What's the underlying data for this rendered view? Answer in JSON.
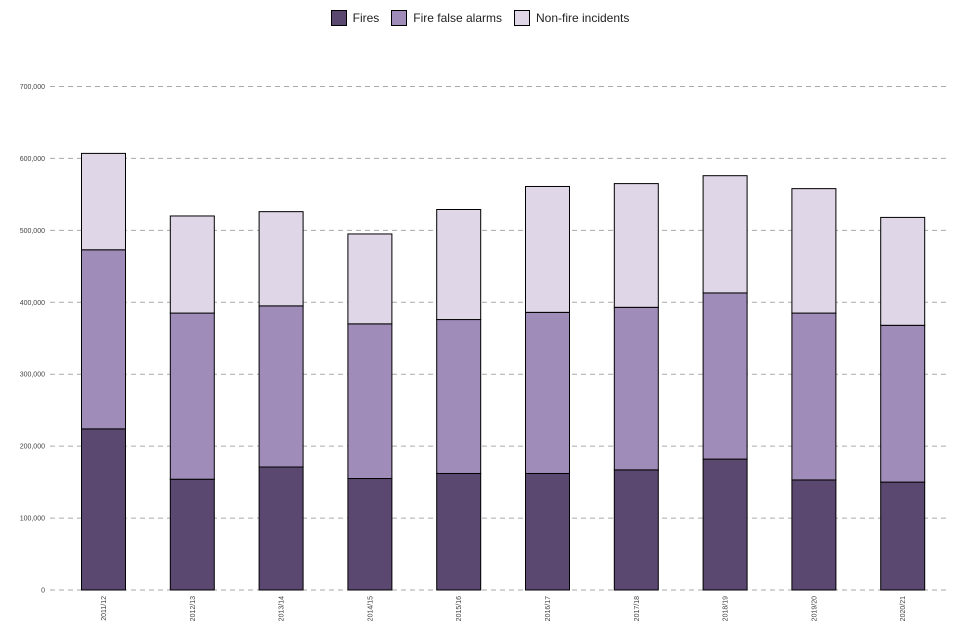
{
  "chart_data": {
    "type": "bar",
    "stacked": true,
    "categories": [
      "2011/12",
      "2012/13",
      "2013/14",
      "2014/15",
      "2015/16",
      "2016/17",
      "2017/18",
      "2018/19",
      "2019/20",
      "2020/21"
    ],
    "series": [
      {
        "name": "Fires",
        "color": "#5a4870",
        "values": [
          224000,
          154000,
          171000,
          155000,
          162000,
          162000,
          167000,
          182000,
          153000,
          150000
        ]
      },
      {
        "name": "Fire false alarms",
        "color": "#a08cb9",
        "values": [
          249000,
          231000,
          224000,
          215000,
          214000,
          224000,
          226000,
          231000,
          232000,
          218000
        ]
      },
      {
        "name": "Non-fire incidents",
        "color": "#dfd6e7",
        "values": [
          134000,
          135000,
          131000,
          125000,
          153000,
          175000,
          172000,
          163000,
          173000,
          150000
        ]
      }
    ],
    "yticks": [
      0,
      100000,
      200000,
      300000,
      400000,
      500000,
      600000,
      700000
    ],
    "ytick_labels": [
      "0",
      "100,000",
      "200,000",
      "300,000",
      "400,000",
      "500,000",
      "600,000",
      "700,000"
    ],
    "ylim": [
      0,
      700000
    ],
    "grid": "horizontal-dashed",
    "legend": "top-center"
  }
}
